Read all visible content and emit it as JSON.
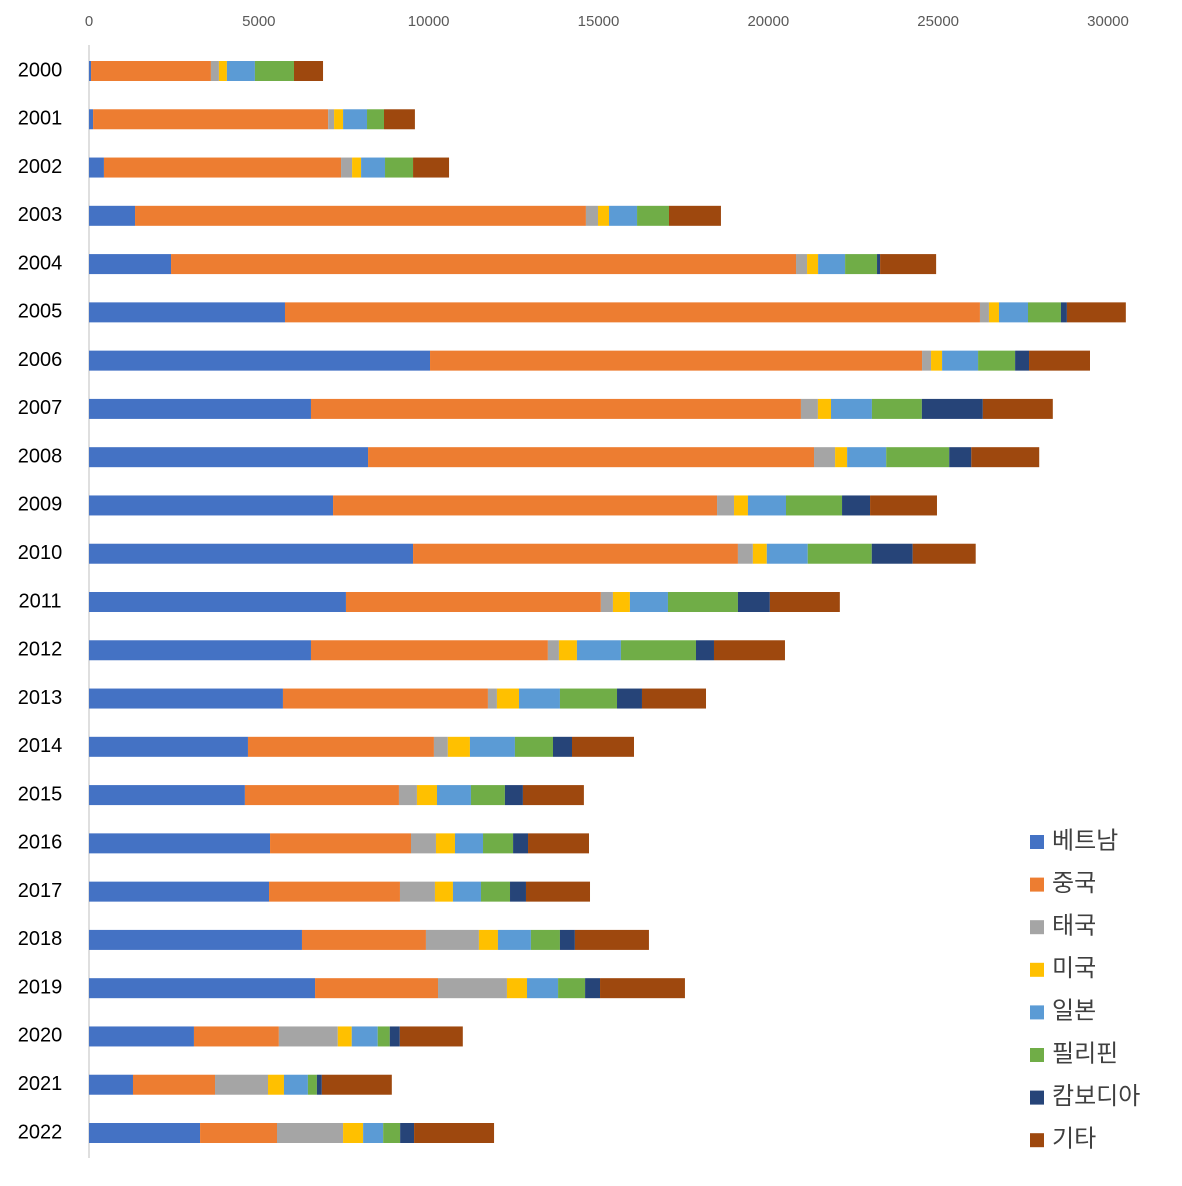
{
  "chart_data": {
    "type": "stacked-bar-horizontal",
    "categories": [
      "2000",
      "2001",
      "2002",
      "2003",
      "2004",
      "2005",
      "2006",
      "2007",
      "2008",
      "2009",
      "2010",
      "2011",
      "2012",
      "2013",
      "2014",
      "2015",
      "2016",
      "2017",
      "2018",
      "2019",
      "2020",
      "2021",
      "2022"
    ],
    "series": [
      {
        "name": "베트남",
        "color": "#4472c4",
        "values": [
          60,
          120,
          440,
          1355,
          2415,
          5770,
          10040,
          6535,
          8215,
          7185,
          9540,
          7565,
          6535,
          5710,
          4680,
          4590,
          5330,
          5300,
          6270,
          6655,
          3090,
          1295,
          3270
        ]
      },
      {
        "name": "중국",
        "color": "#ed7d31",
        "values": [
          3530,
          6920,
          6980,
          13275,
          18400,
          20460,
          14485,
          14425,
          13130,
          11305,
          9565,
          7505,
          6975,
          6035,
          5475,
          4535,
          4150,
          3855,
          3650,
          3620,
          2500,
          2415,
          2265
        ]
      },
      {
        "name": "태국",
        "color": "#a5a5a5",
        "values": [
          235,
          175,
          325,
          355,
          325,
          265,
          265,
          500,
          620,
          500,
          440,
          355,
          325,
          265,
          410,
          530,
          735,
          1030,
          1560,
          2030,
          1735,
          1560,
          1945
        ]
      },
      {
        "name": "미국",
        "color": "#ffc000",
        "values": [
          235,
          265,
          265,
          325,
          325,
          295,
          325,
          385,
          355,
          410,
          410,
          500,
          530,
          650,
          650,
          590,
          560,
          530,
          560,
          590,
          410,
          470,
          590
        ]
      },
      {
        "name": "일본",
        "color": "#5b9bd5",
        "values": [
          825,
          705,
          705,
          825,
          795,
          855,
          1060,
          1205,
          1150,
          1120,
          1205,
          1120,
          1295,
          1205,
          1325,
          1000,
          825,
          825,
          970,
          915,
          765,
          705,
          590
        ]
      },
      {
        "name": "필리핀",
        "color": "#70ad47",
        "values": [
          1150,
          500,
          825,
          940,
          940,
          970,
          1090,
          1470,
          1855,
          1650,
          1885,
          2060,
          2210,
          1680,
          1120,
          1000,
          885,
          855,
          855,
          795,
          355,
          265,
          500
        ]
      },
      {
        "name": "캄보디아",
        "color": "#264478",
        "values": [
          0,
          0,
          0,
          0,
          90,
          175,
          410,
          1795,
          650,
          825,
          1205,
          940,
          530,
          735,
          560,
          530,
          440,
          470,
          440,
          440,
          295,
          145,
          410
        ]
      },
      {
        "name": "기타",
        "color": "#9e480e",
        "values": [
          855,
          910,
          1060,
          1530,
          1650,
          1735,
          1795,
          2060,
          2000,
          1970,
          1855,
          2060,
          2090,
          1885,
          1825,
          1795,
          1795,
          1885,
          2180,
          2500,
          1855,
          2060,
          2355
        ]
      }
    ],
    "xlim": [
      0,
      30000
    ],
    "xticks": [
      0,
      5000,
      10000,
      15000,
      20000,
      25000,
      30000
    ],
    "legend": "right"
  }
}
